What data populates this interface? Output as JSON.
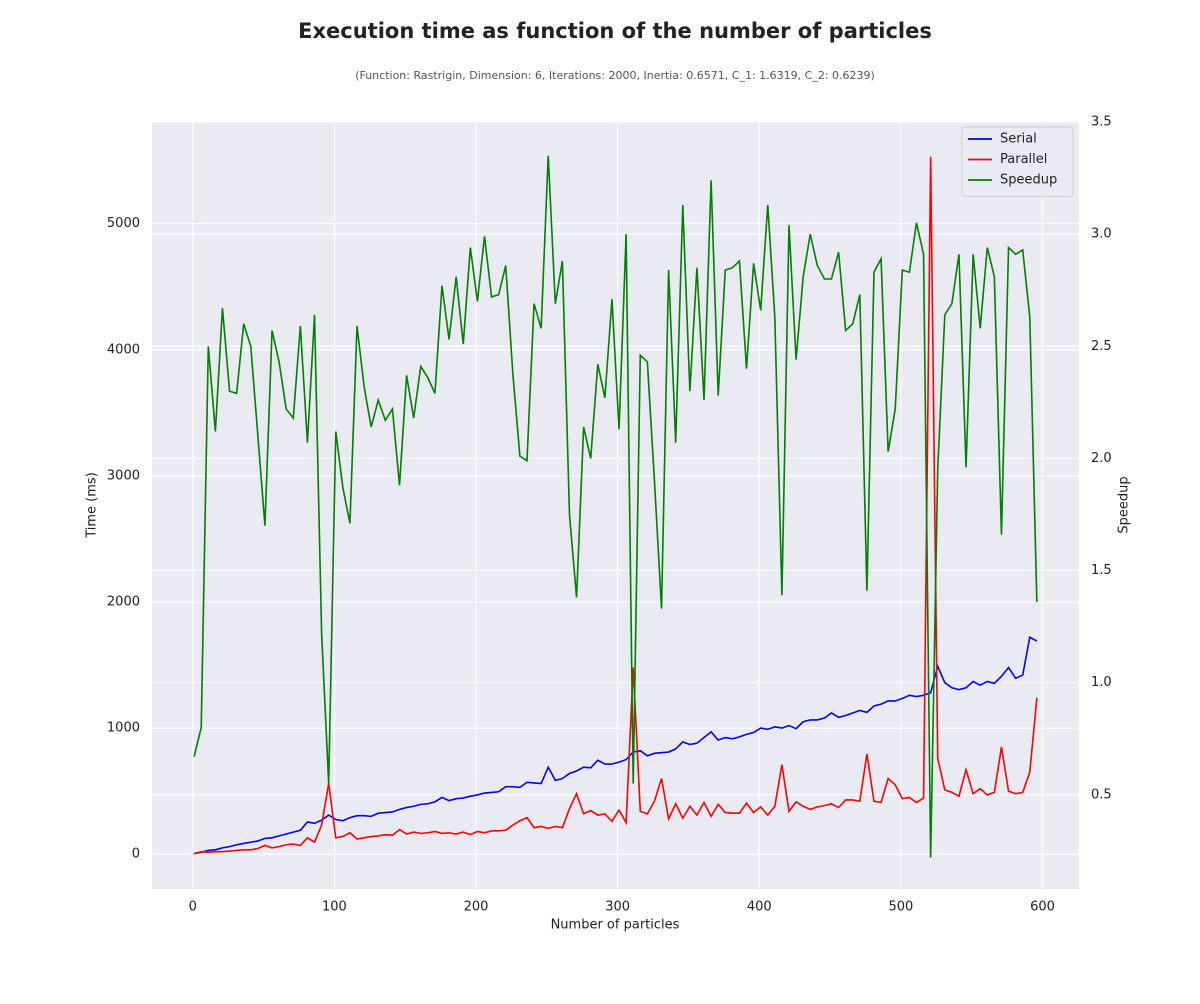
{
  "chart_data": {
    "type": "line",
    "title": "Execution time as function of the number of particles",
    "subtitle": "(Function: Rastrigin, Dimension: 6, Iterations: 2000, Inertia: 0.6571, C_1: 1.6319, C_2: 0.6239)",
    "xlabel": "Number of particles",
    "ylabel": "Time (ms)",
    "y2label": "Speedup",
    "x": [
      1,
      6,
      11,
      16,
      21,
      26,
      31,
      36,
      41,
      46,
      51,
      56,
      61,
      66,
      71,
      76,
      81,
      86,
      91,
      96,
      101,
      106,
      111,
      116,
      121,
      126,
      131,
      136,
      141,
      146,
      151,
      156,
      161,
      166,
      171,
      176,
      181,
      186,
      191,
      196,
      201,
      206,
      211,
      216,
      221,
      226,
      231,
      236,
      241,
      246,
      251,
      256,
      261,
      266,
      271,
      276,
      281,
      286,
      291,
      296,
      301,
      306,
      311,
      316,
      321,
      326,
      331,
      336,
      341,
      346,
      351,
      356,
      361,
      366,
      371,
      376,
      381,
      386,
      391,
      396,
      401,
      406,
      411,
      416,
      421,
      426,
      431,
      436,
      441,
      446,
      451,
      456,
      461,
      466,
      471,
      476,
      481,
      486,
      491,
      496,
      501,
      506,
      511,
      516,
      521,
      526,
      531,
      536,
      541,
      546,
      551,
      556,
      561,
      566,
      571,
      576,
      581,
      586,
      591,
      596
    ],
    "series": [
      {
        "name": "Serial",
        "color": "#0000ff",
        "axis": "y",
        "values": [
          5,
          15,
          30,
          35,
          50,
          60,
          75,
          85,
          95,
          105,
          125,
          130,
          145,
          160,
          175,
          190,
          255,
          245,
          270,
          310,
          275,
          265,
          290,
          305,
          305,
          300,
          325,
          330,
          335,
          355,
          370,
          380,
          395,
          400,
          415,
          450,
          425,
          440,
          445,
          460,
          470,
          485,
          490,
          495,
          535,
          535,
          530,
          570,
          565,
          560,
          690,
          585,
          600,
          640,
          660,
          690,
          685,
          745,
          715,
          715,
          730,
          750,
          810,
          820,
          780,
          800,
          805,
          810,
          835,
          890,
          870,
          880,
          925,
          970,
          905,
          925,
          915,
          930,
          950,
          965,
          1000,
          990,
          1010,
          1000,
          1020,
          995,
          1050,
          1065,
          1065,
          1080,
          1120,
          1085,
          1100,
          1120,
          1140,
          1125,
          1175,
          1190,
          1215,
          1215,
          1235,
          1260,
          1250,
          1260,
          1280,
          1490,
          1360,
          1320,
          1305,
          1320,
          1370,
          1340,
          1370,
          1355,
          1410,
          1480,
          1395,
          1420,
          1720,
          1690
        ]
      },
      {
        "name": "Parallel",
        "color": "#ff0000",
        "axis": "y",
        "values": [
          5,
          20,
          15,
          20,
          20,
          25,
          30,
          35,
          35,
          45,
          70,
          50,
          60,
          75,
          80,
          70,
          130,
          95,
          230,
          560,
          130,
          140,
          170,
          120,
          130,
          140,
          145,
          155,
          150,
          195,
          160,
          175,
          165,
          170,
          180,
          165,
          170,
          160,
          175,
          155,
          180,
          170,
          185,
          185,
          190,
          230,
          265,
          290,
          210,
          220,
          205,
          220,
          210,
          360,
          480,
          320,
          345,
          310,
          320,
          260,
          350,
          250,
          1480,
          340,
          320,
          420,
          600,
          280,
          400,
          285,
          380,
          310,
          410,
          300,
          395,
          330,
          325,
          325,
          405,
          330,
          375,
          310,
          380,
          710,
          340,
          415,
          380,
          355,
          375,
          385,
          400,
          370,
          430,
          430,
          420,
          795,
          420,
          410,
          600,
          550,
          440,
          450,
          410,
          445,
          5530,
          760,
          510,
          490,
          460,
          670,
          480,
          520,
          470,
          490,
          850,
          500,
          480,
          490,
          650,
          1240
        ]
      },
      {
        "name": "Speedup",
        "color": "#008000",
        "axis": "y2",
        "values": [
          0.67,
          0.8,
          2.5,
          2.12,
          2.67,
          2.3,
          2.29,
          2.6,
          2.5,
          2.1,
          1.7,
          2.57,
          2.43,
          2.22,
          2.18,
          2.59,
          2.07,
          2.64,
          1.22,
          0.55,
          2.12,
          1.87,
          1.71,
          2.59,
          2.32,
          2.14,
          2.26,
          2.17,
          2.22,
          1.88,
          2.37,
          2.18,
          2.41,
          2.36,
          2.29,
          2.77,
          2.53,
          2.81,
          2.51,
          2.94,
          2.7,
          2.99,
          2.72,
          2.73,
          2.86,
          2.38,
          2.01,
          1.99,
          2.69,
          2.58,
          3.35,
          2.69,
          2.88,
          1.75,
          1.38,
          2.14,
          2.0,
          2.42,
          2.27,
          2.71,
          2.13,
          3.0,
          0.55,
          2.46,
          2.43,
          1.9,
          1.33,
          2.84,
          2.07,
          3.13,
          2.3,
          2.85,
          2.26,
          3.24,
          2.28,
          2.84,
          2.85,
          2.88,
          2.4,
          2.87,
          2.66,
          3.13,
          2.63,
          1.39,
          3.04,
          2.44,
          2.81,
          3.0,
          2.86,
          2.8,
          2.8,
          2.92,
          2.57,
          2.6,
          2.73,
          1.41,
          2.83,
          2.89,
          2.03,
          2.22,
          2.84,
          2.83,
          3.05,
          2.91,
          0.22,
          1.95,
          2.64,
          2.69,
          2.91,
          1.96,
          2.91,
          2.58,
          2.94,
          2.81,
          1.66,
          2.94,
          2.91,
          2.93,
          2.63,
          1.36
        ]
      }
    ],
    "xlim": [
      -28.75,
      625.75
    ],
    "xticks": [
      0,
      100,
      200,
      300,
      400,
      500,
      600
    ],
    "ylim": [
      -276,
      5806
    ],
    "yticks": [
      0,
      1000,
      2000,
      3000,
      4000,
      5000
    ],
    "y2lim": [
      0.08,
      3.5
    ],
    "y2ticks": [
      0.5,
      {
        "value": 1.0,
        "label": "1.0"
      },
      1.5,
      {
        "value": 2.0,
        "label": "2.0"
      },
      2.5,
      {
        "value": 3.0,
        "label": "3.0"
      },
      3.5
    ],
    "grid": true,
    "legend": "upper right"
  }
}
